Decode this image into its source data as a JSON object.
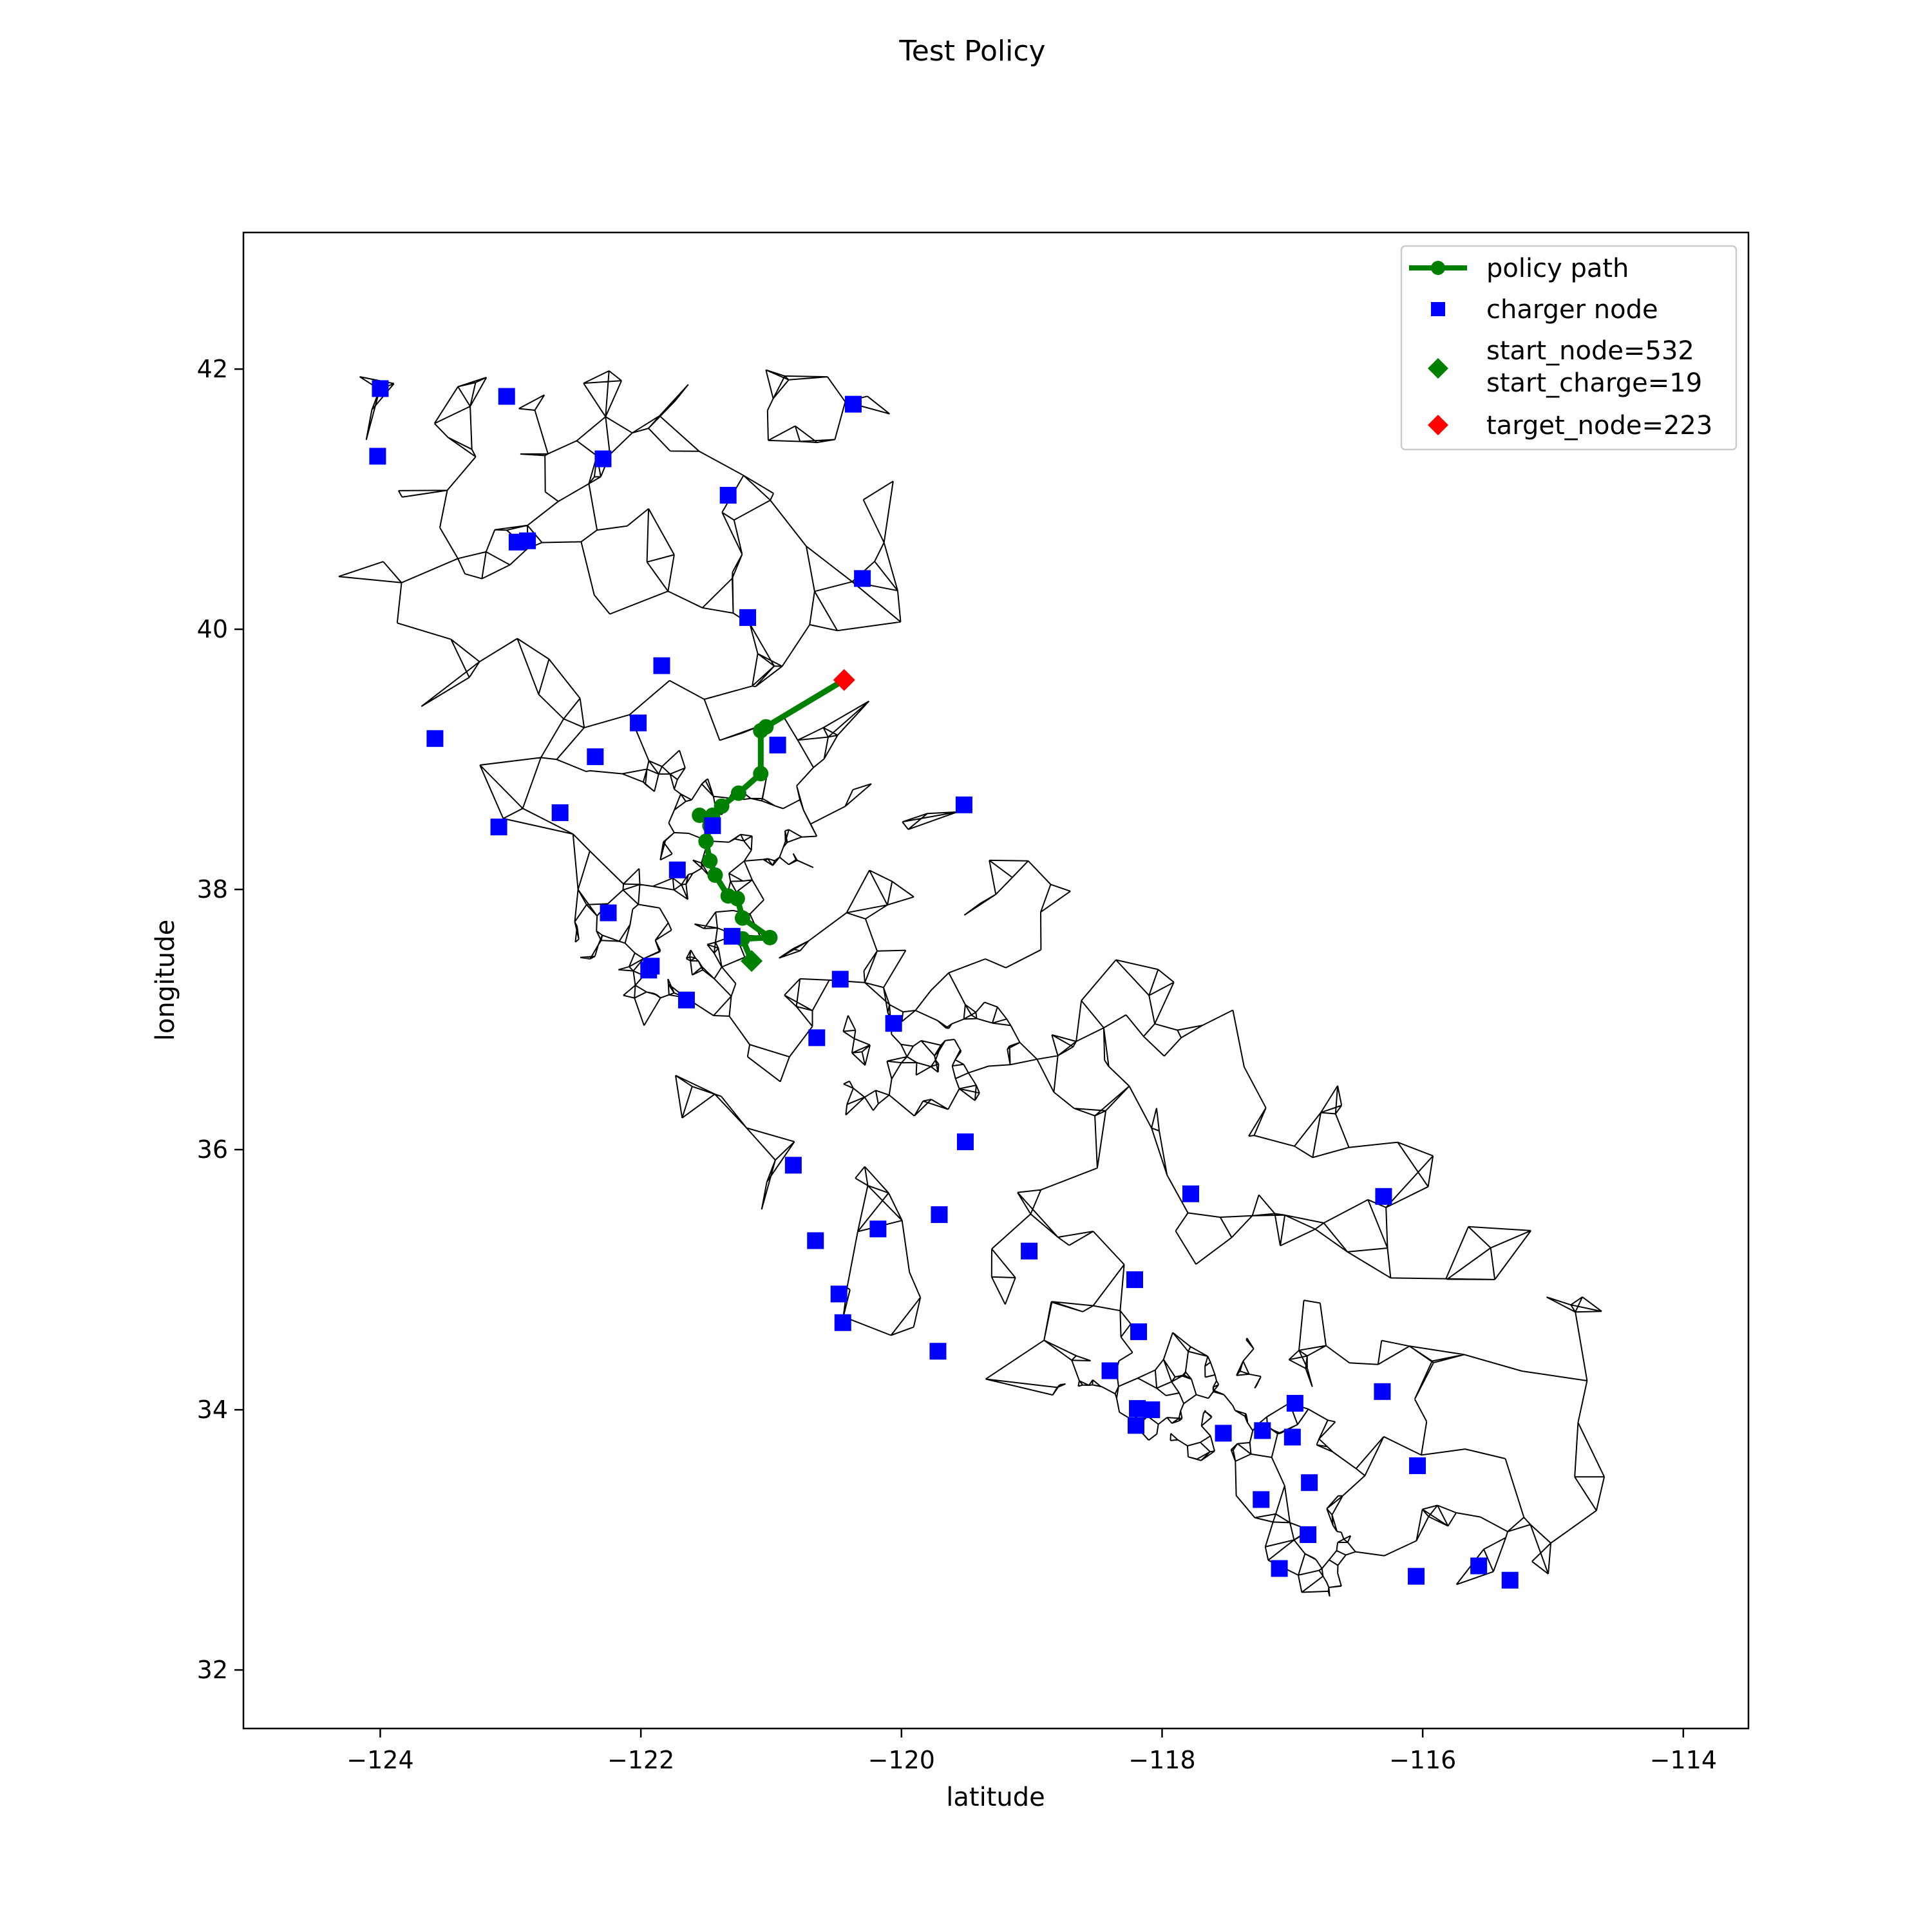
{
  "chart_data": {
    "type": "scatter",
    "title": "Test Policy",
    "xlabel": "latitude",
    "ylabel": "longitude",
    "xlim": [
      -125.05,
      -113.5
    ],
    "ylim": [
      31.55,
      43.05
    ],
    "xticks": [
      -124,
      -122,
      -120,
      -118,
      -116,
      -114
    ],
    "xtick_labels": [
      "−124",
      "−122",
      "−120",
      "−118",
      "−116",
      "−114"
    ],
    "yticks": [
      32,
      34,
      36,
      38,
      40,
      42
    ],
    "ytick_labels": [
      "32",
      "34",
      "36",
      "38",
      "40",
      "42"
    ],
    "grid": false,
    "legend_position": "top-right",
    "colors": {
      "path": "#008000",
      "charger": "#0000ff",
      "start": "#008000",
      "target": "#ff0000",
      "network": "#000000"
    },
    "series": [
      {
        "name": "policy path",
        "kind": "line-marker",
        "points": [
          [
            -121.15,
            37.45
          ],
          [
            -121.22,
            37.62
          ],
          [
            -121.01,
            37.63
          ],
          [
            -121.22,
            37.78
          ],
          [
            -121.26,
            37.93
          ],
          [
            -121.33,
            37.95
          ],
          [
            -121.43,
            38.11
          ],
          [
            -121.47,
            38.22
          ],
          [
            -121.5,
            38.37
          ],
          [
            -121.47,
            38.49
          ],
          [
            -121.55,
            38.57
          ],
          [
            -121.45,
            38.57
          ],
          [
            -121.38,
            38.64
          ],
          [
            -121.25,
            38.74
          ],
          [
            -121.08,
            38.89
          ],
          [
            -121.08,
            39.22
          ],
          [
            -121.04,
            39.25
          ],
          [
            -120.44,
            39.61
          ]
        ]
      },
      {
        "name": "charger node",
        "kind": "square",
        "points": [
          [
            -124.0,
            41.85
          ],
          [
            -123.03,
            41.79
          ],
          [
            -120.37,
            41.73
          ],
          [
            -124.02,
            41.33
          ],
          [
            -122.29,
            41.31
          ],
          [
            -121.33,
            41.03
          ],
          [
            -122.95,
            40.67
          ],
          [
            -122.87,
            40.68
          ],
          [
            -120.3,
            40.39
          ],
          [
            -121.18,
            40.09
          ],
          [
            -121.84,
            39.72
          ],
          [
            -122.02,
            39.28
          ],
          [
            -123.58,
            39.16
          ],
          [
            -120.95,
            39.11
          ],
          [
            -122.35,
            39.02
          ],
          [
            -119.52,
            38.65
          ],
          [
            -122.62,
            38.59
          ],
          [
            -123.09,
            38.48
          ],
          [
            -121.45,
            38.49
          ],
          [
            -121.72,
            38.15
          ],
          [
            -122.25,
            37.82
          ],
          [
            -121.3,
            37.64
          ],
          [
            -121.92,
            37.41
          ],
          [
            -121.94,
            37.38
          ],
          [
            -121.65,
            37.15
          ],
          [
            -120.47,
            37.31
          ],
          [
            -120.06,
            36.97
          ],
          [
            -120.65,
            36.86
          ],
          [
            -119.51,
            36.06
          ],
          [
            -120.83,
            35.88
          ],
          [
            -117.78,
            35.66
          ],
          [
            -116.3,
            35.64
          ],
          [
            -119.71,
            35.5
          ],
          [
            -120.18,
            35.39
          ],
          [
            -120.66,
            35.3
          ],
          [
            -119.02,
            35.22
          ],
          [
            -118.21,
            35.0
          ],
          [
            -120.48,
            34.89
          ],
          [
            -120.45,
            34.67
          ],
          [
            -118.18,
            34.6
          ],
          [
            -119.72,
            34.45
          ],
          [
            -118.4,
            34.3
          ],
          [
            -116.31,
            34.14
          ],
          [
            -116.98,
            34.05
          ],
          [
            -118.19,
            34.01
          ],
          [
            -118.08,
            34.0
          ],
          [
            -118.2,
            33.88
          ],
          [
            -117.23,
            33.84
          ],
          [
            -117.53,
            33.82
          ],
          [
            -117.0,
            33.79
          ],
          [
            -116.04,
            33.57
          ],
          [
            -116.87,
            33.44
          ],
          [
            -117.24,
            33.31
          ],
          [
            -116.88,
            33.04
          ],
          [
            -117.1,
            32.78
          ],
          [
            -115.57,
            32.8
          ],
          [
            -116.05,
            32.72
          ],
          [
            -115.33,
            32.69
          ]
        ]
      },
      {
        "name": "start_node=532\nstart_charge=19",
        "kind": "diamond",
        "points": [
          [
            -121.15,
            37.45
          ]
        ]
      },
      {
        "name": "target_node=223",
        "kind": "diamond",
        "points": [
          [
            -120.44,
            39.61
          ]
        ]
      }
    ]
  }
}
